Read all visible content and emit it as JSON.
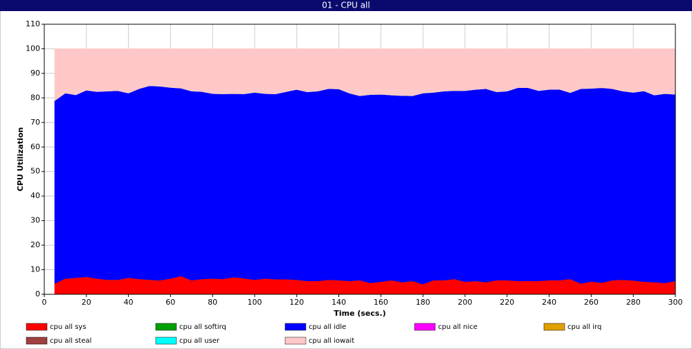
{
  "chart_data": {
    "type": "stacked-area",
    "title": "01 - CPU all",
    "x_label": "Time (secs.)",
    "y_label": "CPU Utilization",
    "xlim": [
      0,
      300
    ],
    "xticks": [
      0,
      20,
      40,
      60,
      80,
      100,
      120,
      140,
      160,
      180,
      200,
      220,
      240,
      260,
      280,
      300
    ],
    "ylim": [
      0,
      110
    ],
    "yticks": [
      0,
      10,
      20,
      30,
      40,
      50,
      60,
      70,
      80,
      90,
      100,
      110
    ],
    "grid": true,
    "x": [
      5,
      10,
      15,
      20,
      25,
      30,
      35,
      40,
      45,
      50,
      55,
      60,
      65,
      70,
      75,
      80,
      85,
      90,
      95,
      100,
      105,
      110,
      115,
      120,
      125,
      130,
      135,
      140,
      145,
      150,
      155,
      160,
      165,
      170,
      175,
      180,
      185,
      190,
      195,
      200,
      205,
      210,
      215,
      220,
      225,
      230,
      235,
      240,
      245,
      250,
      255,
      260,
      265,
      270,
      275,
      280,
      285,
      290,
      295,
      300
    ],
    "series": [
      {
        "name": "cpu all sys",
        "color": "#ff0000",
        "values": [
          4.5,
          6.5,
          6.8,
          7.2,
          6.5,
          6,
          6,
          6.8,
          6.3,
          6,
          5.8,
          6.5,
          7.5,
          5.8,
          6.3,
          6.5,
          6.3,
          7,
          6.6,
          6,
          6.5,
          6.2,
          6.2,
          6,
          5.5,
          5.5,
          6,
          5.8,
          5.5,
          5.8,
          4.7,
          5.2,
          5.8,
          5,
          5.5,
          4.2,
          5.8,
          5.8,
          6.3,
          5.2,
          5.5,
          5,
          5.8,
          5.8,
          5.5,
          5.5,
          5.5,
          5.8,
          5.8,
          6.3,
          4.5,
          5.3,
          4.8,
          5.8,
          6,
          5.7,
          5.2,
          5,
          4.7,
          5.5
        ]
      },
      {
        "name": "cpu all softirq",
        "color": "#00a000",
        "values": [
          0,
          0,
          0,
          0,
          0,
          0,
          0,
          0,
          0,
          0,
          0,
          0,
          0,
          0,
          0,
          0,
          0,
          0,
          0,
          0,
          0,
          0,
          0,
          0,
          0,
          0,
          0,
          0,
          0,
          0,
          0,
          0,
          0,
          0,
          0,
          0,
          0,
          0,
          0,
          0,
          0,
          0,
          0,
          0,
          0,
          0,
          0,
          0,
          0,
          0,
          0,
          0,
          0,
          0,
          0,
          0,
          0,
          0,
          0,
          0
        ]
      },
      {
        "name": "cpu all idle",
        "color": "#0000ff",
        "values": [
          74.5,
          75.5,
          74.5,
          76,
          76.1,
          76.8,
          77,
          75.2,
          77.5,
          79,
          79,
          77.8,
          76.5,
          77,
          76.3,
          75.3,
          75.4,
          74.8,
          75.1,
          76.3,
          75.3,
          75.5,
          76.4,
          77.5,
          77,
          77.3,
          77.8,
          77.9,
          76.5,
          75.1,
          76.7,
          76.3,
          75.4,
          76,
          75.4,
          77.8,
          76.5,
          77,
          76.7,
          77.8,
          78,
          78.8,
          76.7,
          77,
          78.7,
          78.7,
          77.5,
          77.7,
          77.7,
          75.9,
          79.3,
          78.6,
          79.4,
          78,
          76.8,
          76.6,
          77.7,
          76.2,
          77.1,
          76
        ]
      },
      {
        "name": "cpu all nice",
        "color": "#ff00ff",
        "values": [
          0,
          0,
          0,
          0,
          0,
          0,
          0,
          0,
          0,
          0,
          0,
          0,
          0,
          0,
          0,
          0,
          0,
          0,
          0,
          0,
          0,
          0,
          0,
          0,
          0,
          0,
          0,
          0,
          0,
          0,
          0,
          0,
          0,
          0,
          0,
          0,
          0,
          0,
          0,
          0,
          0,
          0,
          0,
          0,
          0,
          0,
          0,
          0,
          0,
          0,
          0,
          0,
          0,
          0,
          0,
          0,
          0,
          0,
          0,
          0
        ]
      },
      {
        "name": "cpu all irq",
        "color": "#e0a000",
        "values": [
          0,
          0,
          0,
          0,
          0,
          0,
          0,
          0,
          0,
          0,
          0,
          0,
          0,
          0,
          0,
          0,
          0,
          0,
          0,
          0,
          0,
          0,
          0,
          0,
          0,
          0,
          0,
          0,
          0,
          0,
          0,
          0,
          0,
          0,
          0,
          0,
          0,
          0,
          0,
          0,
          0,
          0,
          0,
          0,
          0,
          0,
          0,
          0,
          0,
          0,
          0,
          0,
          0,
          0,
          0,
          0,
          0,
          0,
          0,
          0
        ]
      },
      {
        "name": "cpu all steal",
        "color": "#a04040",
        "values": [
          0,
          0,
          0,
          0,
          0,
          0,
          0,
          0,
          0,
          0,
          0,
          0,
          0,
          0,
          0,
          0,
          0,
          0,
          0,
          0,
          0,
          0,
          0,
          0,
          0,
          0,
          0,
          0,
          0,
          0,
          0,
          0,
          0,
          0,
          0,
          0,
          0,
          0,
          0,
          0,
          0,
          0,
          0,
          0,
          0,
          0,
          0,
          0,
          0,
          0,
          0,
          0,
          0,
          0,
          0,
          0,
          0,
          0,
          0,
          0
        ]
      },
      {
        "name": "cpu all user",
        "color": "#00ffff",
        "values": [
          0,
          0,
          0,
          0,
          0,
          0,
          0,
          0,
          0,
          0,
          0,
          0,
          0,
          0,
          0,
          0,
          0,
          0,
          0,
          0,
          0,
          0,
          0,
          0,
          0,
          0,
          0,
          0,
          0,
          0,
          0,
          0,
          0,
          0,
          0,
          0,
          0,
          0,
          0,
          0,
          0,
          0,
          0,
          0,
          0,
          0,
          0,
          0,
          0,
          0,
          0,
          0,
          0,
          0,
          0,
          0,
          0,
          0,
          0,
          0
        ]
      },
      {
        "name": "cpu all iowait",
        "color": "#ffc8c8",
        "values": [
          21,
          18,
          18.7,
          16.8,
          17.4,
          17.2,
          17,
          18,
          16.2,
          15,
          15.2,
          15.7,
          16,
          17.2,
          17.4,
          18.2,
          18.3,
          18.2,
          18.3,
          17.7,
          18.2,
          18.3,
          17.4,
          16.5,
          17.5,
          17.2,
          16.2,
          16.3,
          18,
          19.1,
          18.6,
          18.5,
          18.8,
          19,
          19.1,
          18,
          17.7,
          17.2,
          17,
          17,
          16.5,
          16.2,
          17.5,
          17.2,
          15.8,
          15.8,
          17,
          16.5,
          16.5,
          17.8,
          16.2,
          16.1,
          15.8,
          16.2,
          17.2,
          17.7,
          17.1,
          18.8,
          18.2,
          18.5
        ]
      }
    ]
  }
}
